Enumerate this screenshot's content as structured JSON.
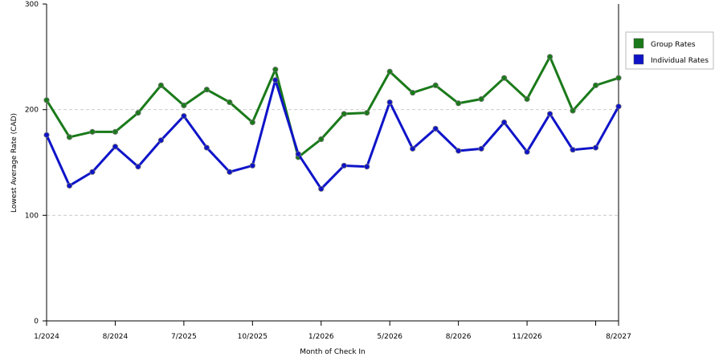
{
  "chart_data": {
    "type": "line",
    "xlabel": "Month of Check In",
    "ylabel": "Lowest Average Rate (CAD)",
    "categories": [
      "1/2024",
      null,
      null,
      "8/2024",
      null,
      null,
      "7/2025",
      null,
      null,
      "10/2025",
      null,
      null,
      "1/2026",
      null,
      null,
      "5/2026",
      null,
      null,
      "8/2026",
      null,
      null,
      "11/2026",
      null,
      null,
      null,
      "8/2027"
    ],
    "series": [
      {
        "name": "Group Rates",
        "color": "#1a7a1a",
        "values": [
          209,
          174,
          179,
          179,
          197,
          223,
          204,
          219,
          207,
          188,
          238,
          155,
          172,
          196,
          197,
          236,
          216,
          223,
          206,
          210,
          230,
          210,
          250,
          199,
          223,
          230
        ]
      },
      {
        "name": "Individual Rates",
        "color": "#0f14c8",
        "values": [
          176,
          128,
          141,
          165,
          146,
          171,
          194,
          164,
          141,
          147,
          228,
          158,
          125,
          147,
          146,
          207,
          163,
          182,
          161,
          163,
          188,
          160,
          196,
          162,
          164,
          203
        ]
      }
    ],
    "ylim": [
      0,
      300
    ],
    "yticks": [
      0,
      100,
      200,
      300
    ],
    "grid": true,
    "legend": "upper right"
  }
}
